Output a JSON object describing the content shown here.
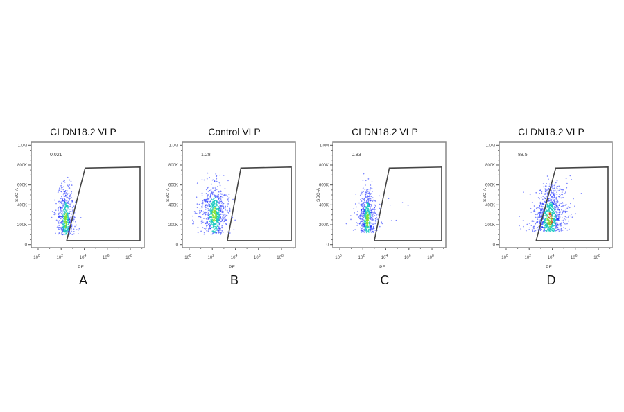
{
  "chart_data": [
    {
      "type": "scatter",
      "panel_label": "A",
      "title": "CLDN18.2 VLP",
      "xlabel": "PE",
      "ylabel": "SSC-A",
      "xscale": "log",
      "xlim": [
        1,
        1000000000.0
      ],
      "ylim": [
        0,
        1000000
      ],
      "xticks": [
        "10^0",
        "10^2",
        "10^4",
        "10^6",
        "10^8"
      ],
      "yticks": [
        "0",
        "200K",
        "400K",
        "600K",
        "800K",
        "1.0M"
      ],
      "gate_percent": "0.021",
      "gate": [
        [
          300,
          40000
        ],
        [
          12000,
          770000
        ],
        [
          1000000000.0,
          780000
        ],
        [
          1000000000.0,
          40000
        ]
      ],
      "population": {
        "pe_center": 250,
        "pe_spread_decades": 0.3,
        "ssc_range": [
          100000,
          720000
        ],
        "ssc_peak": 250000
      }
    },
    {
      "type": "scatter",
      "panel_label": "B",
      "title": "Control VLP",
      "xlabel": "PE",
      "ylabel": "SSC-A",
      "xscale": "log",
      "xlim": [
        1,
        1000000000.0
      ],
      "ylim": [
        0,
        1000000
      ],
      "xticks": [
        "10^0",
        "10^2",
        "10^4",
        "10^6",
        "10^8"
      ],
      "yticks": [
        "0",
        "200K",
        "400K",
        "600K",
        "800K",
        "1.0M"
      ],
      "gate_percent": "1.28",
      "gate": [
        [
          2000,
          40000
        ],
        [
          30000,
          770000
        ],
        [
          1000000000.0,
          780000
        ],
        [
          1000000000.0,
          40000
        ]
      ],
      "population": {
        "pe_center": 150,
        "pe_spread_decades": 0.5,
        "ssc_range": [
          100000,
          720000
        ],
        "ssc_peak": 300000
      }
    },
    {
      "type": "scatter",
      "panel_label": "C",
      "title": "CLDN18.2 VLP",
      "xlabel": "PE",
      "ylabel": "SSC-A",
      "xscale": "log",
      "xlim": [
        1,
        1000000000.0
      ],
      "ylim": [
        0,
        1000000
      ],
      "xticks": [
        "10^0",
        "10^2",
        "10^4",
        "10^6",
        "10^8"
      ],
      "yticks": [
        "0",
        "200K",
        "400K",
        "600K",
        "800K",
        "1.0M"
      ],
      "gate_percent": "0.83",
      "gate": [
        [
          1000,
          40000
        ],
        [
          20000,
          770000
        ],
        [
          1000000000.0,
          780000
        ],
        [
          1000000000.0,
          40000
        ]
      ],
      "population": {
        "pe_center": 250,
        "pe_spread_decades": 0.3,
        "ssc_range": [
          120000,
          720000
        ],
        "ssc_peak": 250000
      }
    },
    {
      "type": "scatter",
      "panel_label": "D",
      "title": "CLDN18.2 VLP",
      "xlabel": "PE",
      "ylabel": "SSC-A",
      "xscale": "log",
      "xlim": [
        1,
        1000000000.0
      ],
      "ylim": [
        0,
        1000000
      ],
      "xticks": [
        "10^0",
        "10^2",
        "10^4",
        "10^6",
        "10^8"
      ],
      "yticks": [
        "0",
        "200K",
        "400K",
        "600K",
        "800K",
        "1.0M"
      ],
      "gate_percent": "88.5",
      "gate": [
        [
          400,
          40000
        ],
        [
          20000,
          770000
        ],
        [
          1000000000.0,
          780000
        ],
        [
          1000000000.0,
          40000
        ]
      ],
      "population": {
        "pe_center": 6000,
        "pe_spread_decades": 0.6,
        "ssc_range": [
          130000,
          720000
        ],
        "ssc_peak": 250000
      }
    }
  ],
  "colors": {
    "low_density": "#1a2cff",
    "mid_density": "#19c9c0",
    "high_density": "#7fe030",
    "peak_density": "#e03020",
    "gate": "#444444",
    "frame": "#888888"
  }
}
